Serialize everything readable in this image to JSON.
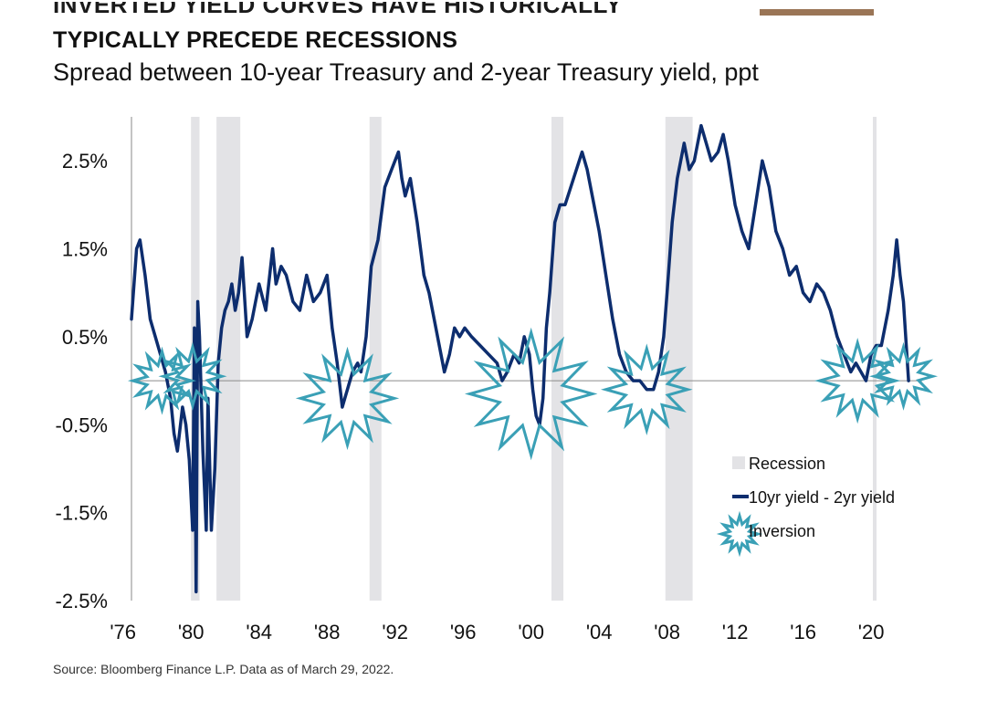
{
  "header": {
    "cut_title": "INVERTED YIELD CURVES HAVE HISTORICALLY",
    "title": "TYPICALLY PRECEDE RECESSIONS",
    "subtitle": "Spread between 10-year Treasury and 2-year Treasury yield, ppt"
  },
  "footer": {
    "source": "Source: Bloomberg Finance L.P. Data as of March 29, 2022."
  },
  "colors": {
    "line": "#0d2d6e",
    "recession": "#e3e3e6",
    "inversion": "#3aa0b6",
    "axis": "#888888",
    "brand": "#9a7556"
  },
  "chart_data": {
    "type": "line",
    "title": "TYPICALLY PRECEDE RECESSIONS",
    "subtitle": "Spread between 10-year Treasury and 2-year Treasury yield, ppt",
    "xlabel": "",
    "ylabel": "",
    "xlim": [
      1976.5,
      2023.0
    ],
    "ylim": [
      -2.5,
      3.0
    ],
    "y_ticks": [
      2.5,
      1.5,
      0.5,
      -0.5,
      -1.5,
      -2.5
    ],
    "y_tick_labels": [
      "2.5%",
      "1.5%",
      "0.5%",
      "-0.5%",
      "-1.5%",
      "-2.5%"
    ],
    "x_ticks": [
      1976,
      1980,
      1984,
      1988,
      1992,
      1996,
      2000,
      2004,
      2008,
      2012,
      2016,
      2020
    ],
    "x_tick_labels": [
      "'76",
      "'80",
      "'84",
      "'88",
      "'92",
      "'96",
      "'00",
      "'04",
      "'08",
      "'12",
      "'16",
      "'20"
    ],
    "grid": false,
    "recessions": [
      [
        1980.0,
        1980.5
      ],
      [
        1981.5,
        1982.9
      ],
      [
        1990.5,
        1991.2
      ],
      [
        2001.2,
        2001.9
      ],
      [
        2007.9,
        2009.5
      ],
      [
        2020.1,
        2020.3
      ]
    ],
    "inversions": [
      {
        "x": 1978.3,
        "y": 0.0,
        "size": 1.0
      },
      {
        "x": 1980.1,
        "y": 0.05,
        "size": 1.0
      },
      {
        "x": 1989.2,
        "y": -0.2,
        "size": 1.6
      },
      {
        "x": 2000.0,
        "y": -0.15,
        "size": 2.1
      },
      {
        "x": 2006.8,
        "y": -0.1,
        "size": 1.4
      },
      {
        "x": 2019.2,
        "y": 0.0,
        "size": 1.3
      },
      {
        "x": 2021.9,
        "y": 0.05,
        "size": 1.0
      }
    ],
    "series": [
      {
        "name": "10yr yield - 2yr yield",
        "x": [
          1976.5,
          1976.8,
          1977.0,
          1977.3,
          1977.6,
          1977.9,
          1978.2,
          1978.5,
          1978.8,
          1979.0,
          1979.2,
          1979.5,
          1979.7,
          1979.9,
          1980.1,
          1980.2,
          1980.3,
          1980.4,
          1980.5,
          1980.7,
          1980.9,
          1981.0,
          1981.2,
          1981.4,
          1981.6,
          1981.8,
          1982.0,
          1982.2,
          1982.4,
          1982.6,
          1982.8,
          1983.0,
          1983.3,
          1983.6,
          1984.0,
          1984.4,
          1984.8,
          1985.0,
          1985.3,
          1985.6,
          1986.0,
          1986.4,
          1986.8,
          1987.2,
          1987.6,
          1988.0,
          1988.3,
          1988.6,
          1988.9,
          1989.2,
          1989.5,
          1989.8,
          1990.0,
          1990.3,
          1990.6,
          1991.0,
          1991.4,
          1991.8,
          1992.2,
          1992.4,
          1992.6,
          1992.9,
          1993.3,
          1993.7,
          1994.0,
          1994.3,
          1994.6,
          1994.9,
          1995.2,
          1995.5,
          1995.8,
          1996.1,
          1996.5,
          1997.0,
          1997.5,
          1998.0,
          1998.3,
          1998.6,
          1999.0,
          1999.3,
          1999.6,
          1999.9,
          2000.1,
          2000.3,
          2000.5,
          2000.7,
          2000.9,
          2001.1,
          2001.4,
          2001.7,
          2002.0,
          2002.5,
          2003.0,
          2003.3,
          2003.6,
          2004.0,
          2004.4,
          2004.8,
          2005.2,
          2005.6,
          2006.0,
          2006.4,
          2006.8,
          2007.2,
          2007.5,
          2007.8,
          2008.0,
          2008.3,
          2008.6,
          2009.0,
          2009.3,
          2009.6,
          2010.0,
          2010.3,
          2010.6,
          2011.0,
          2011.3,
          2011.6,
          2012.0,
          2012.4,
          2012.8,
          2013.2,
          2013.6,
          2014.0,
          2014.4,
          2014.8,
          2015.2,
          2015.6,
          2016.0,
          2016.4,
          2016.8,
          2017.2,
          2017.6,
          2018.0,
          2018.4,
          2018.8,
          2019.1,
          2019.4,
          2019.7,
          2020.0,
          2020.3,
          2020.6,
          2021.0,
          2021.3,
          2021.5,
          2021.7,
          2021.9,
          2022.1,
          2022.2
        ],
        "values": [
          0.7,
          1.5,
          1.6,
          1.2,
          0.7,
          0.5,
          0.3,
          0.1,
          -0.2,
          -0.6,
          -0.8,
          -0.3,
          -0.5,
          -0.9,
          -1.7,
          0.6,
          -2.4,
          0.9,
          0.5,
          -0.8,
          -1.7,
          -0.2,
          -1.7,
          -1.0,
          0.2,
          0.6,
          0.8,
          0.9,
          1.1,
          0.8,
          1.0,
          1.4,
          0.5,
          0.7,
          1.1,
          0.8,
          1.5,
          1.1,
          1.3,
          1.2,
          0.9,
          0.8,
          1.2,
          0.9,
          1.0,
          1.2,
          0.6,
          0.2,
          -0.3,
          -0.1,
          0.1,
          0.2,
          0.1,
          0.5,
          1.3,
          1.6,
          2.2,
          2.4,
          2.6,
          2.3,
          2.1,
          2.3,
          1.8,
          1.2,
          1.0,
          0.7,
          0.4,
          0.1,
          0.3,
          0.6,
          0.5,
          0.6,
          0.5,
          0.4,
          0.3,
          0.2,
          0.0,
          0.1,
          0.3,
          0.2,
          0.5,
          0.3,
          -0.1,
          -0.4,
          -0.5,
          -0.2,
          0.6,
          1.0,
          1.8,
          2.0,
          2.0,
          2.3,
          2.6,
          2.4,
          2.1,
          1.7,
          1.2,
          0.7,
          0.3,
          0.1,
          0.0,
          0.0,
          -0.1,
          -0.1,
          0.1,
          0.5,
          1.0,
          1.8,
          2.3,
          2.7,
          2.4,
          2.5,
          2.9,
          2.7,
          2.5,
          2.6,
          2.8,
          2.5,
          2.0,
          1.7,
          1.5,
          2.0,
          2.5,
          2.2,
          1.7,
          1.5,
          1.2,
          1.3,
          1.0,
          0.9,
          1.1,
          1.0,
          0.8,
          0.5,
          0.3,
          0.1,
          0.2,
          0.1,
          0.0,
          0.3,
          0.4,
          0.4,
          0.8,
          1.2,
          1.6,
          1.2,
          0.9,
          0.3,
          0.0
        ]
      }
    ],
    "legend": {
      "position": "bottom-right",
      "items": [
        {
          "label": "Recession",
          "kind": "band"
        },
        {
          "label": "10yr yield - 2yr yield",
          "kind": "line"
        },
        {
          "label": "Inversion",
          "kind": "star"
        }
      ]
    }
  }
}
